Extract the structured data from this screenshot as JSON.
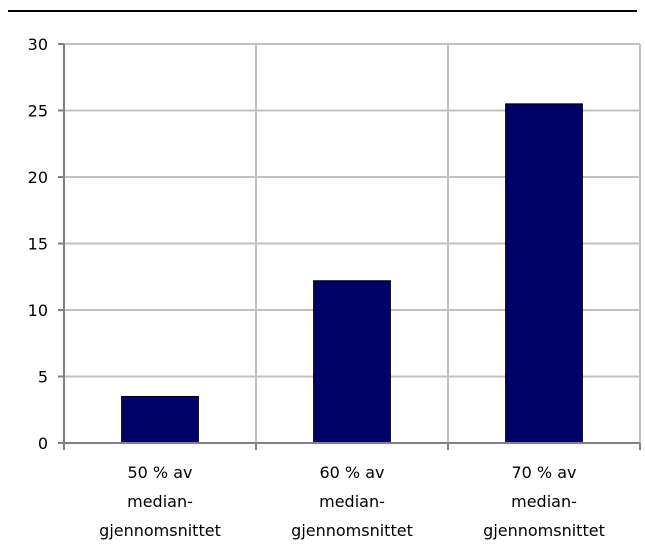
{
  "chart_data": {
    "type": "bar",
    "categories": [
      [
        "50 % av",
        "median-",
        "gjennomsnittet"
      ],
      [
        "60 % av",
        "median-",
        "gjennomsnittet"
      ],
      [
        "70 % av",
        "median-",
        "gjennomsnittet"
      ]
    ],
    "values": [
      3.5,
      12.2,
      25.5
    ],
    "ylim": [
      0,
      30
    ],
    "yticks": [
      0,
      5,
      10,
      15,
      20,
      25,
      30
    ],
    "grid": true,
    "legend": "none",
    "colors": {
      "bar": "#000066",
      "grid": "#c0c0c0",
      "axis": "#808080",
      "rule": "#000000"
    }
  }
}
